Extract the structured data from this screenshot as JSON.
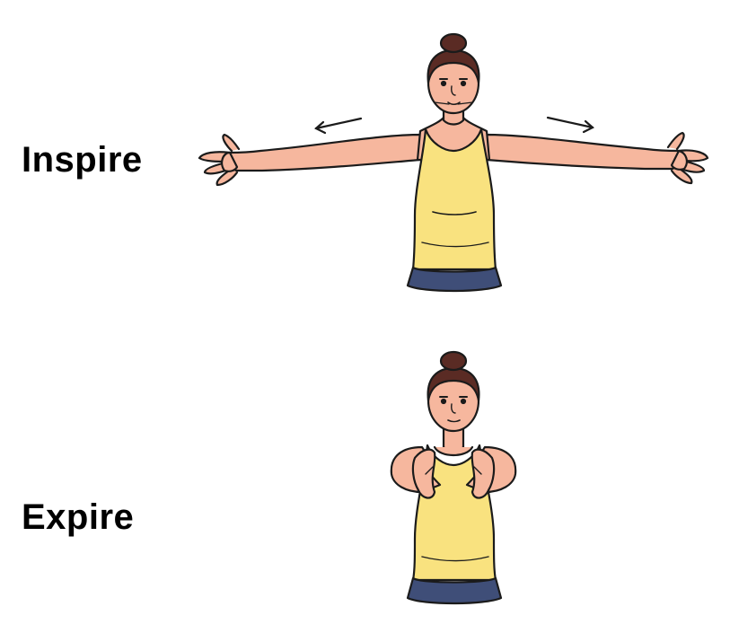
{
  "labels": {
    "inspire": "Inspire",
    "expire": "Expire"
  },
  "colors": {
    "skin": "#f6b79e",
    "skin_shade": "#e89a82",
    "hair": "#5a2b24",
    "top": "#f9e27f",
    "top_shade": "#ead06a",
    "pants": "#3f4e78",
    "outline": "#1b1b1b"
  },
  "icons": {
    "left_arrow": "arrow-left-icon",
    "right_arrow": "arrow-right-icon"
  }
}
